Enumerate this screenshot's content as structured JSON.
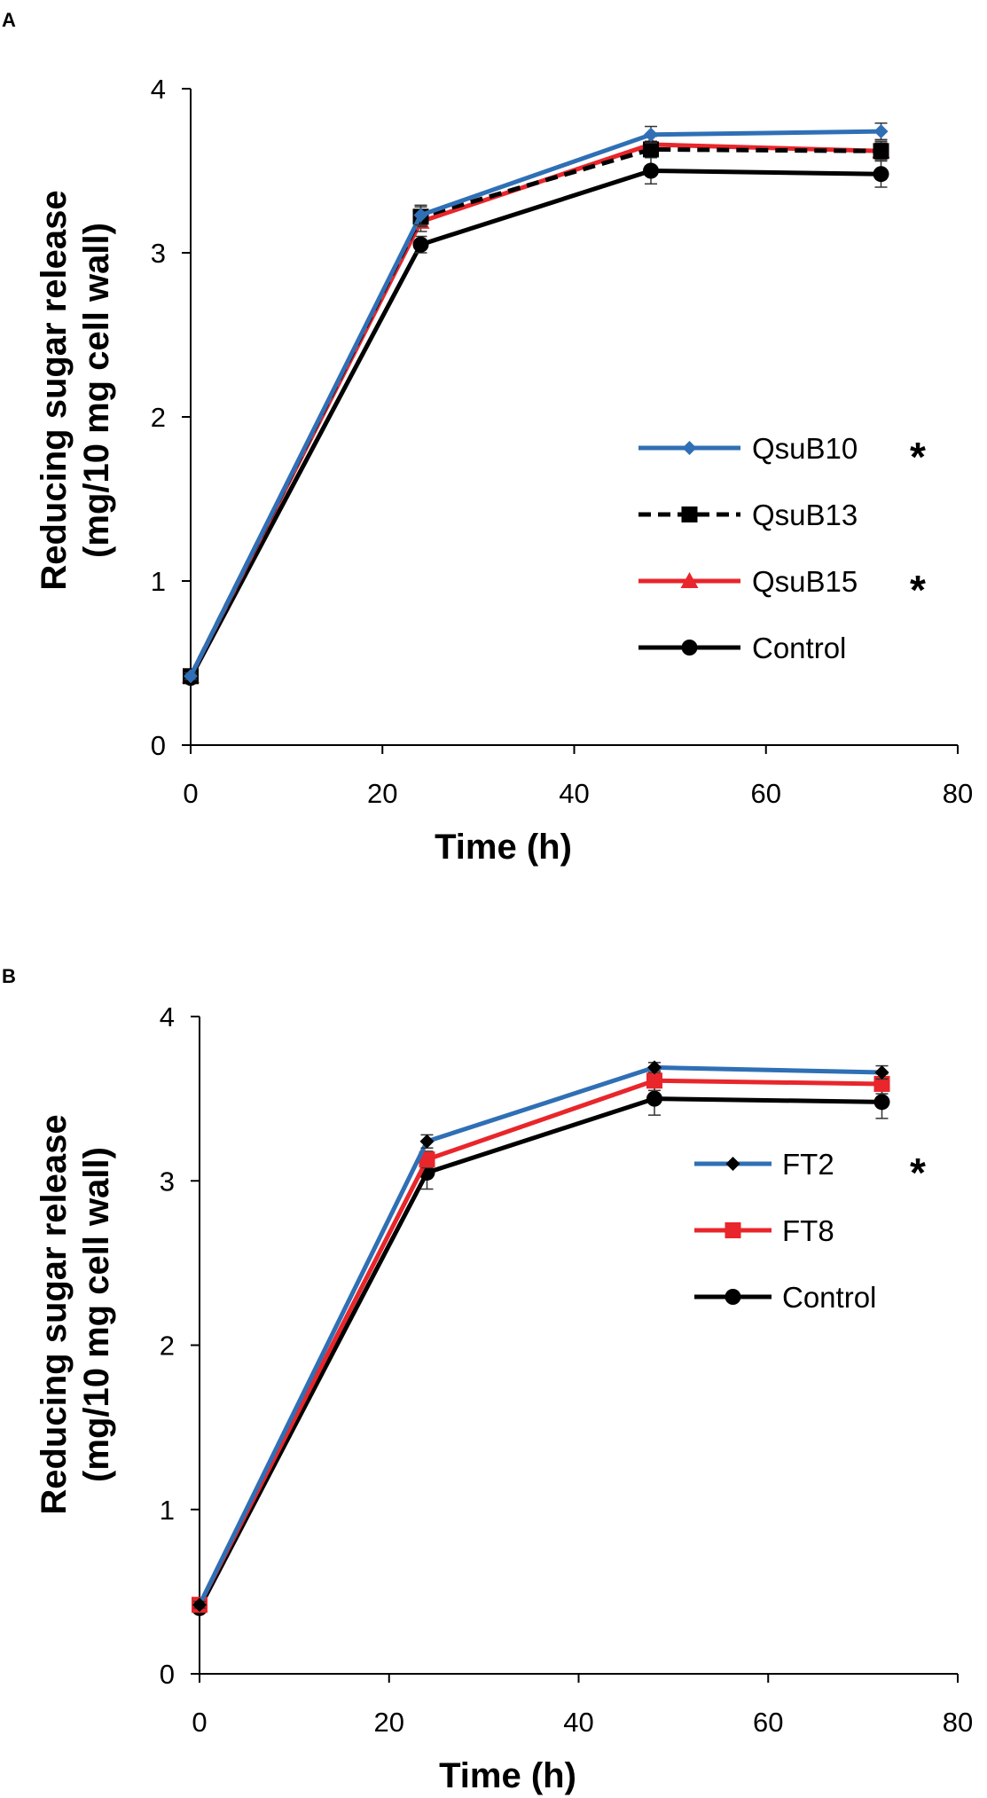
{
  "chart_data": [
    {
      "panel_label": "A",
      "type": "line",
      "x": [
        0,
        24,
        48,
        72
      ],
      "xlim": [
        0,
        80
      ],
      "ylim": [
        0,
        4
      ],
      "xticks": [
        "0",
        "20",
        "40",
        "60",
        "80"
      ],
      "yticks": [
        "0",
        "1",
        "2",
        "3",
        "4"
      ],
      "xlabel": "Time (h)",
      "ylabel_line1": "Reducing sugar release",
      "ylabel_line2": "(mg/10 mg cell wall)",
      "legend_position": "center-right",
      "series": [
        {
          "name": "QsuB10",
          "values": [
            0.42,
            3.23,
            3.72,
            3.74
          ],
          "errors": [
            0.02,
            0.06,
            0.05,
            0.05
          ],
          "color": "#2f6fb5",
          "marker": "diamond",
          "dashed": false,
          "significant": "*"
        },
        {
          "name": "QsuB13",
          "values": [
            0.42,
            3.22,
            3.63,
            3.62
          ],
          "errors": [
            0.02,
            0.06,
            0.05,
            0.06
          ],
          "color": "#000000",
          "marker": "square",
          "dashed": true,
          "significant": ""
        },
        {
          "name": "QsuB15",
          "values": [
            0.42,
            3.19,
            3.66,
            3.62
          ],
          "errors": [
            0.02,
            0.06,
            0.05,
            0.05
          ],
          "color": "#e8262b",
          "marker": "triangle",
          "dashed": false,
          "significant": "*"
        },
        {
          "name": "Control",
          "values": [
            0.41,
            3.05,
            3.5,
            3.48
          ],
          "errors": [
            0.02,
            0.05,
            0.08,
            0.08
          ],
          "color": "#000000",
          "marker": "circle",
          "dashed": false,
          "significant": ""
        }
      ]
    },
    {
      "panel_label": "B",
      "type": "line",
      "x": [
        0,
        24,
        48,
        72
      ],
      "xlim": [
        0,
        80
      ],
      "ylim": [
        0,
        4
      ],
      "xticks": [
        "0",
        "20",
        "40",
        "60",
        "80"
      ],
      "yticks": [
        "0",
        "1",
        "2",
        "3",
        "4"
      ],
      "xlabel": "Time (h)",
      "ylabel_line1": "Reducing sugar release",
      "ylabel_line2": "(mg/10 mg cell wall)",
      "legend_position": "center-right",
      "series": [
        {
          "name": "FT2",
          "values": [
            0.42,
            3.24,
            3.69,
            3.66
          ],
          "errors": [
            0.02,
            0.04,
            0.03,
            0.04
          ],
          "color": "#2f6fb5",
          "marker": "diamond",
          "dashed": false,
          "significant": "*"
        },
        {
          "name": "FT8",
          "values": [
            0.42,
            3.13,
            3.61,
            3.59
          ],
          "errors": [
            0.02,
            0.05,
            0.06,
            0.06
          ],
          "color": "#e8262b",
          "marker": "square",
          "dashed": false,
          "significant": ""
        },
        {
          "name": "Control",
          "values": [
            0.4,
            3.05,
            3.5,
            3.48
          ],
          "errors": [
            0.02,
            0.1,
            0.1,
            0.1
          ],
          "color": "#000000",
          "marker": "circle",
          "dashed": false,
          "significant": ""
        }
      ]
    }
  ]
}
